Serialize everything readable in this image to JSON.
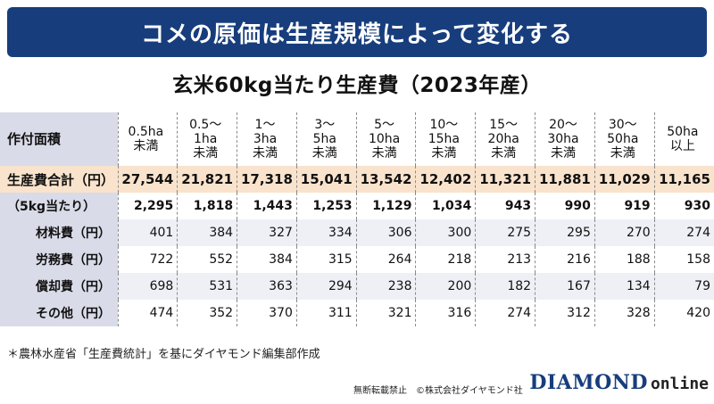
{
  "banner_title": "コメの原価は生産規模によって変化する",
  "subtitle": "玄米60kg当たり生産費（2023年産）",
  "table": {
    "corner_label": "作付面積",
    "columns": [
      [
        "0.5ha",
        "未満"
      ],
      [
        "0.5〜",
        "1ha",
        "未満"
      ],
      [
        "1〜",
        "3ha",
        "未満"
      ],
      [
        "3〜",
        "5ha",
        "未満"
      ],
      [
        "5〜",
        "10ha",
        "未満"
      ],
      [
        "10〜",
        "15ha",
        "未満"
      ],
      [
        "15〜",
        "20ha",
        "未満"
      ],
      [
        "20〜",
        "30ha",
        "未満"
      ],
      [
        "30〜",
        "50ha",
        "未満"
      ],
      [
        "50ha",
        "以上"
      ]
    ],
    "rows": [
      {
        "label": "生産費合計（円）",
        "values": [
          "27,544",
          "21,821",
          "17,318",
          "15,041",
          "13,542",
          "12,402",
          "11,321",
          "11,881",
          "11,029",
          "11,165"
        ]
      },
      {
        "label": "（5kg当たり）",
        "values": [
          "2,295",
          "1,818",
          "1,443",
          "1,253",
          "1,129",
          "1,034",
          "943",
          "990",
          "919",
          "930"
        ]
      },
      {
        "label": "材料費（円）",
        "values": [
          "401",
          "384",
          "327",
          "334",
          "306",
          "300",
          "275",
          "295",
          "270",
          "274"
        ]
      },
      {
        "label": "労務費（円）",
        "values": [
          "722",
          "552",
          "384",
          "315",
          "264",
          "218",
          "213",
          "216",
          "188",
          "158"
        ]
      },
      {
        "label": "償却費（円）",
        "values": [
          "698",
          "531",
          "363",
          "294",
          "238",
          "200",
          "182",
          "167",
          "134",
          "79"
        ]
      },
      {
        "label": "その他（円）",
        "values": [
          "474",
          "352",
          "370",
          "311",
          "321",
          "316",
          "274",
          "312",
          "328",
          "420"
        ]
      }
    ]
  },
  "source_note": "＊農林水産省「生産費統計」を基にダイヤモンド編集部作成",
  "footer_credit": "無断転載禁止　©株式会社ダイヤモンド社",
  "logo": {
    "diamond": "DIAMOND",
    "online": "online"
  },
  "colors": {
    "banner": "#173d7c",
    "total_row": "#f9e3cc",
    "label_column": "#d9dbe8",
    "alt_row": "#eef0f6"
  }
}
